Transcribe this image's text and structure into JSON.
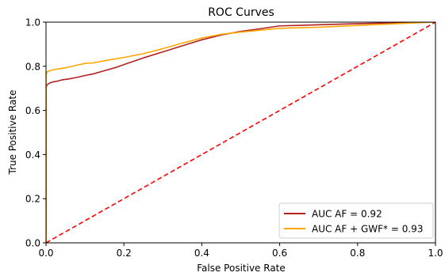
{
  "chart_data": {
    "type": "line",
    "title": "ROC Curves",
    "xlabel": "False Positive Rate",
    "ylabel": "True Positive Rate",
    "xlim": [
      0.0,
      1.0
    ],
    "ylim": [
      0.0,
      1.0
    ],
    "x_ticks": [
      0.0,
      0.2,
      0.4,
      0.6,
      0.8,
      1.0
    ],
    "x_tick_labels": [
      "0.0",
      "0.2",
      "0.4",
      "0.6",
      "0.8",
      "1.0"
    ],
    "y_ticks": [
      0.0,
      0.2,
      0.4,
      0.6,
      0.8,
      1.0
    ],
    "y_tick_labels": [
      "0.0",
      "0.2",
      "0.4",
      "0.6",
      "0.8",
      "1.0"
    ],
    "grid": false,
    "legend_position": "bottom-right",
    "series": [
      {
        "name": "AUC AF = 0.92",
        "color": "#b22222",
        "line_style": "solid",
        "points": [
          [
            0.0,
            0.0
          ],
          [
            0.0,
            0.7
          ],
          [
            0.002,
            0.715
          ],
          [
            0.01,
            0.725
          ],
          [
            0.02,
            0.73
          ],
          [
            0.03,
            0.733
          ],
          [
            0.04,
            0.738
          ],
          [
            0.06,
            0.743
          ],
          [
            0.08,
            0.75
          ],
          [
            0.1,
            0.758
          ],
          [
            0.12,
            0.765
          ],
          [
            0.15,
            0.78
          ],
          [
            0.18,
            0.795
          ],
          [
            0.2,
            0.808
          ],
          [
            0.25,
            0.838
          ],
          [
            0.3,
            0.865
          ],
          [
            0.35,
            0.893
          ],
          [
            0.4,
            0.92
          ],
          [
            0.45,
            0.942
          ],
          [
            0.5,
            0.958
          ],
          [
            0.55,
            0.97
          ],
          [
            0.6,
            0.983
          ],
          [
            0.7,
            0.988
          ],
          [
            0.8,
            0.993
          ],
          [
            0.9,
            0.997
          ],
          [
            1.0,
            1.0
          ]
        ]
      },
      {
        "name": "AUC AF + GWF* = 0.93",
        "color": "#ffa500",
        "line_style": "solid",
        "points": [
          [
            0.0,
            0.0
          ],
          [
            0.0,
            0.76
          ],
          [
            0.003,
            0.775
          ],
          [
            0.01,
            0.78
          ],
          [
            0.02,
            0.785
          ],
          [
            0.04,
            0.79
          ],
          [
            0.06,
            0.797
          ],
          [
            0.08,
            0.805
          ],
          [
            0.1,
            0.813
          ],
          [
            0.12,
            0.815
          ],
          [
            0.15,
            0.825
          ],
          [
            0.2,
            0.84
          ],
          [
            0.25,
            0.857
          ],
          [
            0.3,
            0.88
          ],
          [
            0.35,
            0.905
          ],
          [
            0.4,
            0.928
          ],
          [
            0.45,
            0.945
          ],
          [
            0.5,
            0.955
          ],
          [
            0.6,
            0.972
          ],
          [
            0.7,
            0.977
          ],
          [
            0.8,
            0.985
          ],
          [
            0.9,
            0.993
          ],
          [
            1.0,
            1.0
          ]
        ]
      },
      {
        "name": "",
        "color": "#ff0000",
        "line_style": "dashed",
        "points": [
          [
            0.0,
            0.0
          ],
          [
            1.0,
            1.0
          ]
        ]
      }
    ]
  }
}
